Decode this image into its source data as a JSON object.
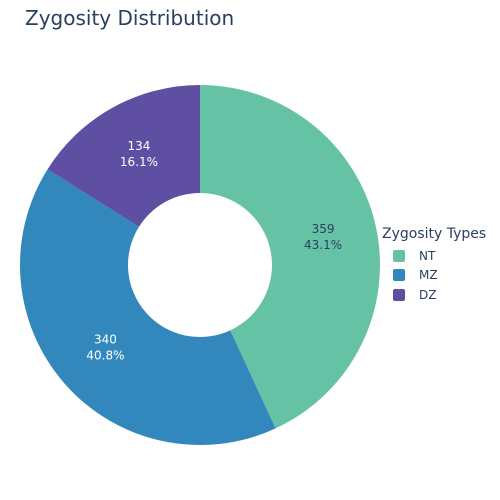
{
  "chart_data": {
    "type": "pie",
    "title": "Zygosity Distribution",
    "hole": true,
    "legend_title": "Zygosity Types",
    "legend_placement": "right",
    "slices": [
      {
        "label": "NT",
        "value": 359,
        "percent": "43.1%",
        "color": "#66c2a5",
        "text_color": "#2a3f5f"
      },
      {
        "label": "MZ",
        "value": 340,
        "percent": "40.8%",
        "color": "#3288bd",
        "text_color": "#ffffff"
      },
      {
        "label": "DZ",
        "value": 134,
        "percent": "16.1%",
        "color": "#5e4fa2",
        "text_color": "#ffffff"
      }
    ]
  }
}
